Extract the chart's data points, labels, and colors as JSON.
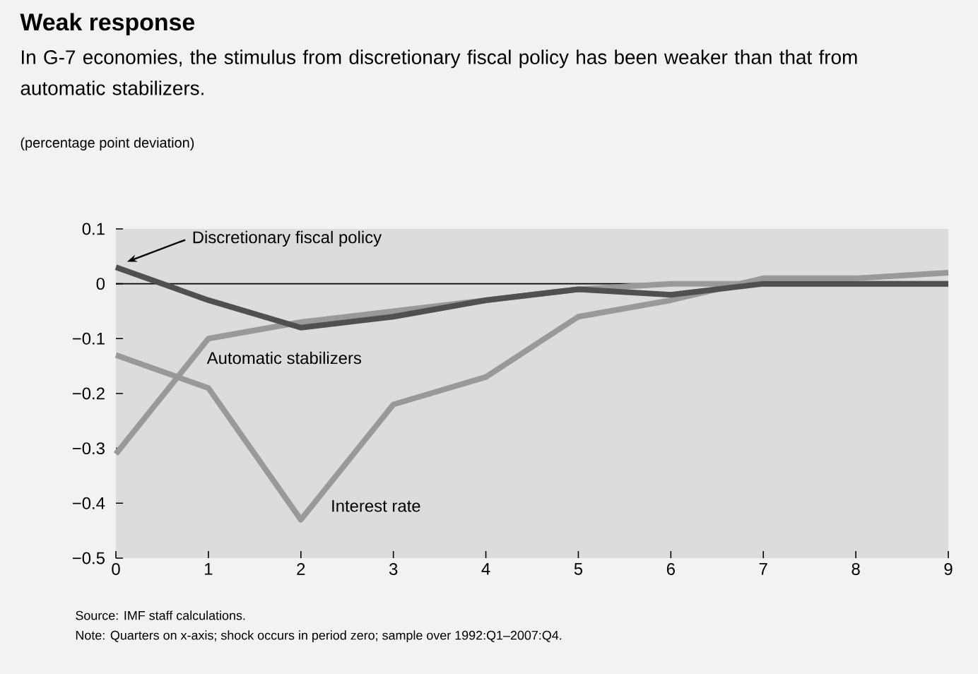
{
  "chart_data": {
    "type": "line",
    "title": "Weak response",
    "subtitle": "In G-7 economies, the stimulus from discretionary fiscal policy has been weaker than that from automatic stabilizers.",
    "x": [
      0,
      1,
      2,
      3,
      4,
      5,
      6,
      7,
      8,
      9
    ],
    "series": [
      {
        "name": "Discretionary fiscal policy",
        "color": "#505050",
        "values": [
          0.03,
          -0.03,
          -0.08,
          -0.06,
          -0.03,
          -0.01,
          -0.02,
          0.0,
          0.0,
          0.0
        ]
      },
      {
        "name": "Automatic stabilizers",
        "color": "#999999",
        "values": [
          -0.31,
          -0.1,
          -0.07,
          -0.05,
          -0.03,
          -0.01,
          0.0,
          0.0,
          0.0,
          0.0
        ]
      },
      {
        "name": "Interest rate",
        "color": "#999999",
        "values": [
          -0.13,
          -0.19,
          -0.43,
          -0.22,
          -0.17,
          -0.06,
          -0.03,
          0.01,
          0.01,
          0.02
        ]
      }
    ],
    "xlim": [
      0,
      9
    ],
    "xticks": [
      0,
      1,
      2,
      3,
      4,
      5,
      6,
      7,
      8,
      9
    ],
    "ylim": [
      -0.5,
      0.1
    ],
    "yticks": [
      {
        "value": -0.5,
        "label": "−0.5"
      },
      {
        "value": -0.4,
        "label": "−0.4"
      },
      {
        "value": -0.3,
        "label": "−0.3"
      },
      {
        "value": -0.2,
        "label": "−0.2"
      },
      {
        "value": -0.1,
        "label": "−0.1"
      },
      0,
      0.1
    ],
    "ref_lines": [
      {
        "axis": "y",
        "value": 0,
        "color": "#000000"
      }
    ],
    "grid": false,
    "line_style": "solid",
    "annotations": [
      "(percentage point deviation)",
      "Source: IMF staff calculations.",
      "Note: Quarters on x-axis; shock occurs in period zero; sample over 1992:Q1–2007:Q4."
    ]
  }
}
